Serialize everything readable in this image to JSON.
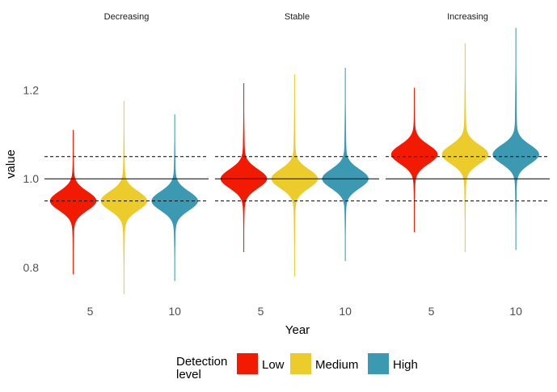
{
  "chart_data": {
    "type": "violin",
    "title": "",
    "xlabel": "Year",
    "ylabel": "value",
    "ylim": [
      0.725,
      1.345
    ],
    "y_ticks": [
      {
        "value": 0.8,
        "label": "0.8"
      },
      {
        "value": 1.0,
        "label": "1.0"
      },
      {
        "value": 1.2,
        "label": "1.2"
      }
    ],
    "x_ticks": [
      {
        "value": 5,
        "label": "5"
      },
      {
        "value": 10,
        "label": "10"
      }
    ],
    "grid": false,
    "reference_lines": [
      {
        "value": 1.0,
        "style": "solid"
      },
      {
        "value": 1.05,
        "style": "dashed"
      },
      {
        "value": 0.95,
        "style": "dashed"
      }
    ],
    "legend": {
      "title_lines": [
        "Detection",
        "level"
      ],
      "position": "bottom",
      "entries": [
        {
          "name": "Low",
          "color": "#F21A00"
        },
        {
          "name": "Medium",
          "color": "#EBCC2A"
        },
        {
          "name": "High",
          "color": "#3B9AB2"
        }
      ]
    },
    "facets": [
      {
        "label": "Decreasing",
        "violins": [
          {
            "group": "Low",
            "year": 4,
            "min": 0.785,
            "max": 1.11,
            "median": 0.95
          },
          {
            "group": "Medium",
            "year": 7,
            "min": 0.74,
            "max": 1.175,
            "median": 0.95
          },
          {
            "group": "High",
            "year": 10,
            "min": 0.77,
            "max": 1.145,
            "median": 0.95
          }
        ]
      },
      {
        "label": "Stable",
        "violins": [
          {
            "group": "Low",
            "year": 4,
            "min": 0.835,
            "max": 1.215,
            "median": 1.0
          },
          {
            "group": "Medium",
            "year": 7,
            "min": 0.78,
            "max": 1.235,
            "median": 1.0
          },
          {
            "group": "High",
            "year": 10,
            "min": 0.815,
            "max": 1.25,
            "median": 1.0
          }
        ]
      },
      {
        "label": "Increasing",
        "violins": [
          {
            "group": "Low",
            "year": 4,
            "min": 0.88,
            "max": 1.205,
            "median": 1.055
          },
          {
            "group": "Medium",
            "year": 7,
            "min": 0.835,
            "max": 1.305,
            "median": 1.055
          },
          {
            "group": "High",
            "year": 10,
            "min": 0.84,
            "max": 1.34,
            "median": 1.055
          }
        ]
      }
    ]
  }
}
